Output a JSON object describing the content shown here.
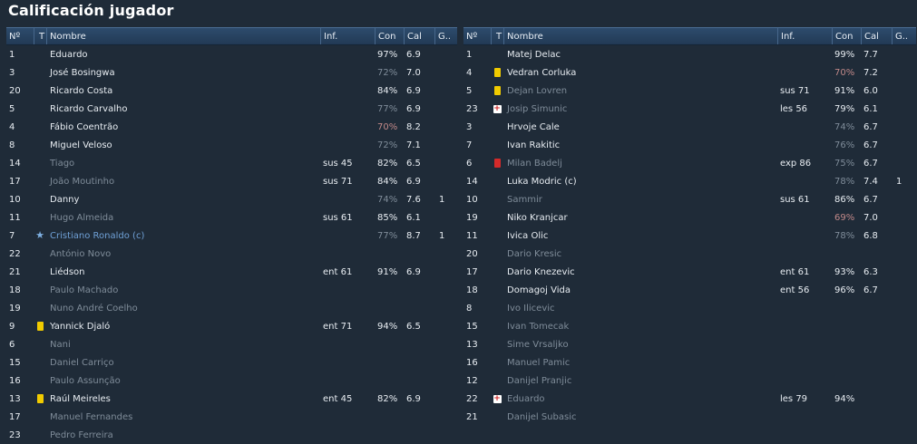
{
  "title": "Calificación jugador",
  "columns": {
    "num": "Nº",
    "t": "T",
    "name": "Nombre",
    "inf": "Inf.",
    "con": "Con",
    "cal": "Cal",
    "g": "G.."
  },
  "left": [
    {
      "num": "1",
      "mark": "",
      "name": "Eduardo",
      "inf": "",
      "con": "97%",
      "cal": "6.9",
      "g": "",
      "style": "normal",
      "con_style": "normal"
    },
    {
      "num": "3",
      "mark": "",
      "name": "José Bosingwa",
      "inf": "",
      "con": "72%",
      "cal": "7.0",
      "g": "",
      "style": "normal",
      "con_style": "dim"
    },
    {
      "num": "20",
      "mark": "",
      "name": "Ricardo Costa",
      "inf": "",
      "con": "84%",
      "cal": "6.9",
      "g": "",
      "style": "normal",
      "con_style": "normal"
    },
    {
      "num": "5",
      "mark": "",
      "name": "Ricardo Carvalho",
      "inf": "",
      "con": "77%",
      "cal": "6.9",
      "g": "",
      "style": "normal",
      "con_style": "dim"
    },
    {
      "num": "4",
      "mark": "",
      "name": "Fábio Coentrão",
      "inf": "",
      "con": "70%",
      "cal": "8.2",
      "g": "",
      "style": "normal",
      "con_style": "pink"
    },
    {
      "num": "8",
      "mark": "",
      "name": "Miguel Veloso",
      "inf": "",
      "con": "72%",
      "cal": "7.1",
      "g": "",
      "style": "normal",
      "con_style": "dim"
    },
    {
      "num": "14",
      "mark": "",
      "name": "Tiago",
      "inf": "sus 45",
      "con": "82%",
      "cal": "6.5",
      "g": "",
      "style": "dim",
      "con_style": "normal"
    },
    {
      "num": "17",
      "mark": "",
      "name": "João Moutinho",
      "inf": "sus 71",
      "con": "84%",
      "cal": "6.9",
      "g": "",
      "style": "dim",
      "con_style": "normal"
    },
    {
      "num": "10",
      "mark": "",
      "name": "Danny",
      "inf": "",
      "con": "74%",
      "cal": "7.6",
      "g": "1",
      "style": "normal",
      "con_style": "dim"
    },
    {
      "num": "11",
      "mark": "",
      "name": "Hugo Almeida",
      "inf": "sus 61",
      "con": "85%",
      "cal": "6.1",
      "g": "",
      "style": "dim",
      "con_style": "normal"
    },
    {
      "num": "7",
      "mark": "star",
      "name": "Cristiano Ronaldo (c)",
      "inf": "",
      "con": "77%",
      "cal": "8.7",
      "g": "1",
      "style": "star",
      "con_style": "dim"
    },
    {
      "num": "22",
      "mark": "",
      "name": "António Novo",
      "inf": "",
      "con": "",
      "cal": "",
      "g": "",
      "style": "dim",
      "con_style": "normal"
    },
    {
      "num": "21",
      "mark": "",
      "name": "Liédson",
      "inf": "ent 61",
      "con": "91%",
      "cal": "6.9",
      "g": "",
      "style": "normal",
      "con_style": "normal"
    },
    {
      "num": "18",
      "mark": "",
      "name": "Paulo Machado",
      "inf": "",
      "con": "",
      "cal": "",
      "g": "",
      "style": "dim",
      "con_style": "normal"
    },
    {
      "num": "19",
      "mark": "",
      "name": "Nuno André Coelho",
      "inf": "",
      "con": "",
      "cal": "",
      "g": "",
      "style": "dim",
      "con_style": "normal"
    },
    {
      "num": "9",
      "mark": "yellow",
      "name": "Yannick Djaló",
      "inf": "ent 71",
      "con": "94%",
      "cal": "6.5",
      "g": "",
      "style": "normal",
      "con_style": "normal"
    },
    {
      "num": "6",
      "mark": "",
      "name": "Nani",
      "inf": "",
      "con": "",
      "cal": "",
      "g": "",
      "style": "dim",
      "con_style": "normal"
    },
    {
      "num": "15",
      "mark": "",
      "name": "Daniel Carriço",
      "inf": "",
      "con": "",
      "cal": "",
      "g": "",
      "style": "dim",
      "con_style": "normal"
    },
    {
      "num": "16",
      "mark": "",
      "name": "Paulo Assunção",
      "inf": "",
      "con": "",
      "cal": "",
      "g": "",
      "style": "dim",
      "con_style": "normal"
    },
    {
      "num": "13",
      "mark": "yellow",
      "name": "Raúl Meireles",
      "inf": "ent 45",
      "con": "82%",
      "cal": "6.9",
      "g": "",
      "style": "normal",
      "con_style": "normal"
    },
    {
      "num": "17",
      "mark": "",
      "name": "Manuel Fernandes",
      "inf": "",
      "con": "",
      "cal": "",
      "g": "",
      "style": "dim",
      "con_style": "normal"
    },
    {
      "num": "23",
      "mark": "",
      "name": "Pedro Ferreira",
      "inf": "",
      "con": "",
      "cal": "",
      "g": "",
      "style": "dim",
      "con_style": "normal"
    }
  ],
  "right": [
    {
      "num": "1",
      "mark": "",
      "name": "Matej Delac",
      "inf": "",
      "con": "99%",
      "cal": "7.7",
      "g": "",
      "style": "normal",
      "con_style": "normal"
    },
    {
      "num": "4",
      "mark": "yellow",
      "name": "Vedran Corluka",
      "inf": "",
      "con": "70%",
      "cal": "7.2",
      "g": "",
      "style": "normal",
      "con_style": "pink"
    },
    {
      "num": "5",
      "mark": "yellow",
      "name": "Dejan Lovren",
      "inf": "sus 71",
      "con": "91%",
      "cal": "6.0",
      "g": "",
      "style": "dim",
      "con_style": "normal"
    },
    {
      "num": "23",
      "mark": "injury",
      "name": "Josip Simunic",
      "inf": "les 56",
      "con": "79%",
      "cal": "6.1",
      "g": "",
      "style": "dim",
      "con_style": "normal"
    },
    {
      "num": "3",
      "mark": "",
      "name": "Hrvoje Cale",
      "inf": "",
      "con": "74%",
      "cal": "6.7",
      "g": "",
      "style": "normal",
      "con_style": "dim"
    },
    {
      "num": "7",
      "mark": "",
      "name": "Ivan Rakitic",
      "inf": "",
      "con": "76%",
      "cal": "6.7",
      "g": "",
      "style": "normal",
      "con_style": "dim"
    },
    {
      "num": "6",
      "mark": "red",
      "name": "Milan Badelj",
      "inf": "exp 86",
      "con": "75%",
      "cal": "6.7",
      "g": "",
      "style": "dim",
      "con_style": "dim"
    },
    {
      "num": "14",
      "mark": "",
      "name": "Luka Modric (c)",
      "inf": "",
      "con": "78%",
      "cal": "7.4",
      "g": "1",
      "style": "normal",
      "con_style": "dim"
    },
    {
      "num": "10",
      "mark": "",
      "name": "Sammir",
      "inf": "sus 61",
      "con": "86%",
      "cal": "6.7",
      "g": "",
      "style": "dim",
      "con_style": "normal"
    },
    {
      "num": "19",
      "mark": "",
      "name": "Niko Kranjcar",
      "inf": "",
      "con": "69%",
      "cal": "7.0",
      "g": "",
      "style": "normal",
      "con_style": "pink"
    },
    {
      "num": "11",
      "mark": "",
      "name": "Ivica Olic",
      "inf": "",
      "con": "78%",
      "cal": "6.8",
      "g": "",
      "style": "normal",
      "con_style": "dim"
    },
    {
      "num": "20",
      "mark": "",
      "name": "Dario Kresic",
      "inf": "",
      "con": "",
      "cal": "",
      "g": "",
      "style": "dim",
      "con_style": "normal"
    },
    {
      "num": "17",
      "mark": "",
      "name": "Dario Knezevic",
      "inf": "ent 61",
      "con": "93%",
      "cal": "6.3",
      "g": "",
      "style": "normal",
      "con_style": "normal"
    },
    {
      "num": "18",
      "mark": "",
      "name": "Domagoj Vida",
      "inf": "ent 56",
      "con": "96%",
      "cal": "6.7",
      "g": "",
      "style": "normal",
      "con_style": "normal"
    },
    {
      "num": "8",
      "mark": "",
      "name": "Ivo Ilicevic",
      "inf": "",
      "con": "",
      "cal": "",
      "g": "",
      "style": "dim",
      "con_style": "normal"
    },
    {
      "num": "15",
      "mark": "",
      "name": "Ivan Tomecak",
      "inf": "",
      "con": "",
      "cal": "",
      "g": "",
      "style": "dim",
      "con_style": "normal"
    },
    {
      "num": "13",
      "mark": "",
      "name": "Sime Vrsaljko",
      "inf": "",
      "con": "",
      "cal": "",
      "g": "",
      "style": "dim",
      "con_style": "normal"
    },
    {
      "num": "16",
      "mark": "",
      "name": "Manuel Pamic",
      "inf": "",
      "con": "",
      "cal": "",
      "g": "",
      "style": "dim",
      "con_style": "normal"
    },
    {
      "num": "12",
      "mark": "",
      "name": "Danijel Pranjic",
      "inf": "",
      "con": "",
      "cal": "",
      "g": "",
      "style": "dim",
      "con_style": "normal"
    },
    {
      "num": "22",
      "mark": "injury",
      "name": "Eduardo",
      "inf": "les 79",
      "con": "94%",
      "cal": "",
      "g": "",
      "style": "dim",
      "con_style": "normal"
    },
    {
      "num": "21",
      "mark": "",
      "name": "Danijel Subasic",
      "inf": "",
      "con": "",
      "cal": "",
      "g": "",
      "style": "dim",
      "con_style": "normal"
    }
  ]
}
